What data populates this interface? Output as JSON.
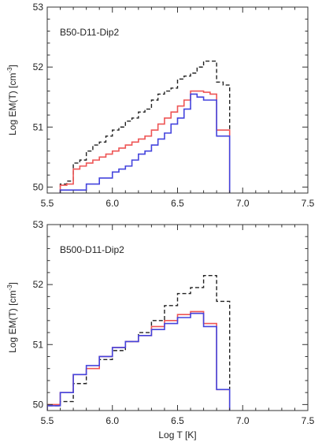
{
  "chart_data": [
    {
      "type": "line",
      "title": "B50-D11-Dip2",
      "xlabel": "",
      "ylabel": "Log EM(T) [cm",
      "ylabel_sup": "-3",
      "ylabel_close": "]",
      "xlim": [
        5.5,
        7.5
      ],
      "ylim": [
        49.9,
        53.0
      ],
      "xticks": [
        5.5,
        6.0,
        6.5,
        7.0,
        7.5
      ],
      "xtick_labels": [
        "5.5",
        "6.0",
        "6.5",
        "7.0",
        "7.5"
      ],
      "yticks": [
        50,
        51,
        52,
        53
      ],
      "ytick_labels": [
        "50",
        "51",
        "52",
        "53"
      ],
      "bin_edges": [
        5.6,
        5.65,
        5.7,
        5.75,
        5.8,
        5.85,
        5.9,
        5.95,
        6.0,
        6.05,
        6.1,
        6.15,
        6.2,
        6.25,
        6.3,
        6.35,
        6.4,
        6.45,
        6.5,
        6.55,
        6.6,
        6.65,
        6.7,
        6.75,
        6.8,
        6.85,
        6.9
      ],
      "series": [
        {
          "color": "#222222",
          "dash": true,
          "values": [
            50.05,
            50.1,
            50.4,
            50.45,
            50.6,
            50.7,
            50.75,
            50.85,
            50.95,
            51.0,
            51.1,
            51.15,
            51.25,
            51.3,
            51.45,
            51.55,
            51.6,
            51.65,
            51.8,
            51.85,
            51.9,
            52.0,
            52.1,
            52.1,
            51.75,
            51.7
          ]
        },
        {
          "color": "#ee5555",
          "dash": false,
          "values": [
            50.03,
            50.05,
            50.3,
            50.35,
            50.4,
            50.45,
            50.5,
            50.55,
            50.6,
            50.65,
            50.7,
            50.75,
            50.8,
            50.85,
            50.95,
            51.05,
            51.15,
            51.25,
            51.35,
            51.45,
            51.6,
            51.6,
            51.58,
            51.55,
            50.95,
            50.95
          ]
        },
        {
          "color": "#4444dd",
          "dash": false,
          "values": [
            49.95,
            49.95,
            49.95,
            49.95,
            50.05,
            50.05,
            50.15,
            50.15,
            50.25,
            50.3,
            50.35,
            50.45,
            50.55,
            50.6,
            50.7,
            50.8,
            50.9,
            51.05,
            51.15,
            51.3,
            51.55,
            51.5,
            51.45,
            51.45,
            50.85,
            50.85
          ]
        }
      ]
    },
    {
      "type": "line",
      "title": "B500-D11-Dip2",
      "xlabel": "Log T [K]",
      "ylabel": "Log EM(T) [cm",
      "ylabel_sup": "-3",
      "ylabel_close": "]",
      "xlim": [
        5.5,
        7.5
      ],
      "ylim": [
        49.9,
        53.0
      ],
      "xticks": [
        5.5,
        6.0,
        6.5,
        7.0,
        7.5
      ],
      "xtick_labels": [
        "5.5",
        "6.0",
        "6.5",
        "7.0",
        "7.5"
      ],
      "yticks": [
        50,
        51,
        52,
        53
      ],
      "ytick_labels": [
        "50",
        "51",
        "52",
        "53"
      ],
      "bin_edges": [
        5.5,
        5.6,
        5.7,
        5.8,
        5.9,
        6.0,
        6.1,
        6.2,
        6.3,
        6.4,
        6.5,
        6.6,
        6.7,
        6.8,
        6.9
      ],
      "series": [
        {
          "color": "#222222",
          "dash": true,
          "values": [
            49.98,
            50.05,
            50.35,
            50.6,
            50.75,
            50.9,
            51.05,
            51.2,
            51.4,
            51.65,
            51.85,
            51.95,
            52.15,
            51.72
          ]
        },
        {
          "color": "#ee5555",
          "dash": false,
          "values": [
            50.0,
            50.2,
            50.5,
            50.6,
            50.8,
            50.95,
            51.05,
            51.15,
            51.3,
            51.4,
            51.5,
            51.55,
            51.35,
            50.25
          ]
        },
        {
          "color": "#4444dd",
          "dash": false,
          "values": [
            49.98,
            50.2,
            50.5,
            50.65,
            50.8,
            50.95,
            51.05,
            51.15,
            51.25,
            51.35,
            51.45,
            51.52,
            51.3,
            50.25
          ]
        }
      ]
    }
  ]
}
